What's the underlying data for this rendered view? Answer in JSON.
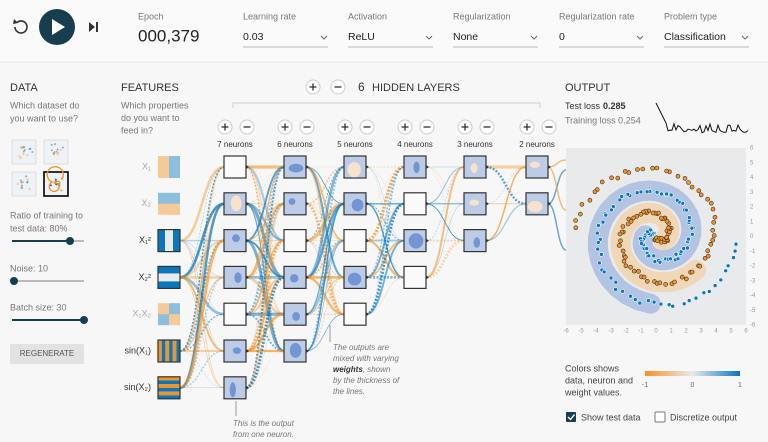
{
  "header": {
    "epoch_label": "Epoch",
    "epoch": "000,379",
    "controls": [
      {
        "label": "Learning rate",
        "value": "0.03"
      },
      {
        "label": "Activation",
        "value": "ReLU"
      },
      {
        "label": "Regularization",
        "value": "None"
      },
      {
        "label": "Regularization rate",
        "value": "0"
      },
      {
        "label": "Problem type",
        "value": "Classification"
      }
    ]
  },
  "data_panel": {
    "title": "DATA",
    "subtitle": [
      "Which dataset do",
      "you want to use?"
    ],
    "ratio_label": [
      "Ratio of training to",
      "test data:  80%"
    ],
    "noise_label": "Noise:  10",
    "batch_label": "Batch size:  30",
    "button": "REGENERATE"
  },
  "features": {
    "title": "FEATURES",
    "subtitle": [
      "Which properties",
      "do you want to",
      "feed in?"
    ],
    "inputs": [
      "X₁",
      "X₂",
      "X₁²",
      "X₂²",
      "X₁X₂",
      "sin(X₁)",
      "sin(X₂)"
    ]
  },
  "network": {
    "layer_count": "6",
    "layers_label": "HIDDEN LAYERS",
    "layers": [
      "7 neurons",
      "6 neurons",
      "5 neurons",
      "4 neurons",
      "3 neurons",
      "2 neurons"
    ]
  },
  "annotations": {
    "neuron_output": [
      "This is the output",
      "from one neuron."
    ],
    "weights": {
      "lines": [
        "The outputs are",
        "mixed with varying"
      ],
      "bold": "weights",
      "after": ", shown",
      "rest": [
        "by the thickness of",
        "the lines."
      ]
    }
  },
  "output": {
    "title": "OUTPUT",
    "test_loss_label": "Test loss",
    "test_loss": "0.285",
    "training_loss": "Training loss 0.254",
    "x_ticks": [
      -6,
      -5,
      -4,
      -3,
      -2,
      -1,
      0,
      1,
      2,
      3,
      4,
      5,
      6
    ],
    "y_ticks": [
      6,
      5,
      4,
      3,
      2,
      1,
      0,
      -1,
      -2,
      -3,
      -4,
      -5,
      -6
    ],
    "colors_note": [
      "Colors shows",
      "data, neuron and",
      "weight values."
    ],
    "scale_ticks": [
      -1,
      0,
      1
    ],
    "show_test": "Show test data",
    "discretize": "Discretize output"
  }
}
